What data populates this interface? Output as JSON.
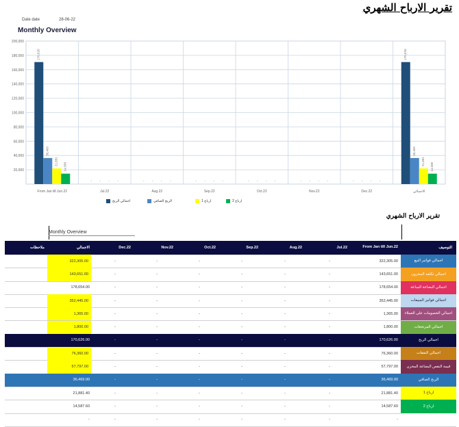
{
  "report": {
    "title": "تقرير الارباح الشهري",
    "date_label": "Date date",
    "date_value": "28-06-22",
    "overview_title": "Monthly Overview"
  },
  "colors": {
    "navy": "#1f4e79",
    "steel_blue": "#4a86c5",
    "yellow": "#ffff00",
    "green": "#00b050",
    "header_bg": "#0b0c3f",
    "grid": "#c8d6e6"
  },
  "chart_data": {
    "type": "bar",
    "categories": [
      "From Jan till Jun.22",
      "Jul.22",
      "Aug.22",
      "Sep.22",
      "Oct.22",
      "Nov.22",
      "Dec.22",
      "الاجمالي"
    ],
    "series": [
      {
        "name": "اجمالي الربح",
        "color": "#1f4e79",
        "values": [
          170626,
          0,
          0,
          0,
          0,
          0,
          0,
          170626
        ],
        "labels": [
          "170,626",
          "",
          "",
          "",
          "",
          "",
          "",
          "170,626"
        ]
      },
      {
        "name": "الربح الصافي",
        "color": "#4a86c5",
        "values": [
          36469,
          0,
          0,
          0,
          0,
          0,
          0,
          36469
        ],
        "labels": [
          "36,469",
          "",
          "",
          "",
          "",
          "",
          "",
          "36,469"
        ]
      },
      {
        "name": "ارباح 1",
        "color": "#ffff00",
        "values": [
          21881,
          0,
          0,
          0,
          0,
          0,
          0,
          21881
        ],
        "labels": [
          "21,881",
          "",
          "",
          "",
          "",
          "",
          "",
          "21,881"
        ]
      },
      {
        "name": "ارباح 2",
        "color": "#00b050",
        "values": [
          14588,
          0,
          0,
          0,
          0,
          0,
          0,
          14588
        ],
        "labels": [
          "14,588",
          "",
          "",
          "",
          "",
          "",
          "",
          "14,588"
        ]
      }
    ],
    "yticks": [
      "200,000",
      "180,000",
      "160,000",
      "140,000",
      "120,000",
      "100,000",
      "80,000",
      "60,000",
      "40,000",
      "20,000"
    ],
    "ylim": [
      0,
      200000
    ],
    "grid": true,
    "legend_position": "bottom"
  },
  "table": {
    "subtitle": "تقرير الارباح الشهري",
    "caption": "Monthly Overview",
    "headers": {
      "notes": "ملاحظات",
      "total": "الاجمالي",
      "dec": "Dec.22",
      "nov": "Nov.22",
      "oct": "Oct.22",
      "sep": "Sep.22",
      "aug": "Aug.22",
      "jul": "Jul.22",
      "jan_jun": "From Jan till Jun.22",
      "desc": "التوصيف"
    },
    "rows": [
      {
        "desc": "اجمالي فواتير البيع",
        "desc_color": "#2e75b6",
        "jan_jun": "322,305.00",
        "jul": "-",
        "aug": "-",
        "sep": "-",
        "oct": "-",
        "nov": "-",
        "dec": "-",
        "total": "322,305.00",
        "total_hl": true,
        "kind": "normal"
      },
      {
        "desc": "اجمالي تكلفة المخزون",
        "desc_color": "#f4a020",
        "jan_jun": "143,651.00",
        "jul": "-",
        "aug": "-",
        "sep": "-",
        "oct": "-",
        "nov": "-",
        "dec": "-",
        "total": "143,651.00",
        "total_hl": true,
        "kind": "normal"
      },
      {
        "desc": "اجمالي البضاعة المباعة",
        "desc_color": "#e0315f",
        "jan_jun": "178,654.00",
        "jul": "-",
        "aug": "-",
        "sep": "-",
        "oct": "-",
        "nov": "-",
        "dec": "-",
        "total": "178,654.00",
        "total_hl": false,
        "kind": "normal"
      },
      {
        "desc": "اجمالي فواتير المبيعات",
        "desc_color": "#bcd7ee",
        "desc_text_color": "#1a1a3a",
        "jan_jun": "352,445.00",
        "jul": "-",
        "aug": "-",
        "sep": "-",
        "oct": "-",
        "nov": "-",
        "dec": "-",
        "total": "352,445.00",
        "total_hl": true,
        "kind": "normal"
      },
      {
        "desc": "اجمالي الخصومات على العملاء",
        "desc_color": "#a0507e",
        "jan_jun": "1,365.00",
        "jul": "-",
        "aug": "-",
        "sep": "-",
        "oct": "-",
        "nov": "-",
        "dec": "-",
        "total": "1,365.00",
        "total_hl": true,
        "kind": "normal"
      },
      {
        "desc": "اجمالي المرتجعات",
        "desc_color": "#70ad47",
        "jan_jun": "1,800.00",
        "jul": "-",
        "aug": "-",
        "sep": "-",
        "oct": "-",
        "nov": "-",
        "dec": "-",
        "total": "1,800.00",
        "total_hl": true,
        "kind": "normal"
      },
      {
        "desc": "اجمالي الربح",
        "desc_color": "#0b0c3f",
        "jan_jun": "170,626.00",
        "jul": "-",
        "aug": "-",
        "sep": "-",
        "oct": "-",
        "nov": "-",
        "dec": "-",
        "total": "170,626.00",
        "total_hl": false,
        "kind": "navy"
      },
      {
        "desc": "اجمالي النفقات",
        "desc_color": "#c5801a",
        "jan_jun": "76,360.00",
        "jul": "-",
        "aug": "-",
        "sep": "-",
        "oct": "-",
        "nov": "-",
        "dec": "-",
        "total": "76,360.00",
        "total_hl": true,
        "kind": "normal"
      },
      {
        "desc": "قيمة النقص البضاعة المخزن",
        "desc_color": "#7a2e50",
        "jan_jun": "57,797.00",
        "jul": "-",
        "aug": "-",
        "sep": "-",
        "oct": "-",
        "nov": "-",
        "dec": "-",
        "total": "57,797.00",
        "total_hl": true,
        "kind": "normal"
      },
      {
        "desc": "الربح الصافي",
        "desc_color": "#2e75b6",
        "jan_jun": "36,469.00",
        "jul": "-",
        "aug": "-",
        "sep": "-",
        "oct": "-",
        "nov": "-",
        "dec": "-",
        "total": "36,469.00",
        "total_hl": false,
        "kind": "blue"
      },
      {
        "desc": "ارباح 1",
        "desc_color": "#ffff00",
        "desc_text_color": "#333333",
        "jan_jun": "21,881.40",
        "jul": "-",
        "aug": "-",
        "sep": "-",
        "oct": "-",
        "nov": "-",
        "dec": "-",
        "total": "21,881.40",
        "total_hl": false,
        "kind": "normal"
      },
      {
        "desc": "ارباح 2",
        "desc_color": "#00b050",
        "jan_jun": "14,587.60",
        "jul": "-",
        "aug": "-",
        "sep": "-",
        "oct": "-",
        "nov": "-",
        "dec": "-",
        "total": "14,587.60",
        "total_hl": false,
        "kind": "normal"
      },
      {
        "desc": "",
        "desc_color": "#ffffff",
        "jan_jun": "-",
        "jul": "-",
        "aug": "-",
        "sep": "-",
        "oct": "-",
        "nov": "-",
        "dec": "-",
        "total": "-",
        "total_hl": false,
        "kind": "normal"
      }
    ]
  }
}
